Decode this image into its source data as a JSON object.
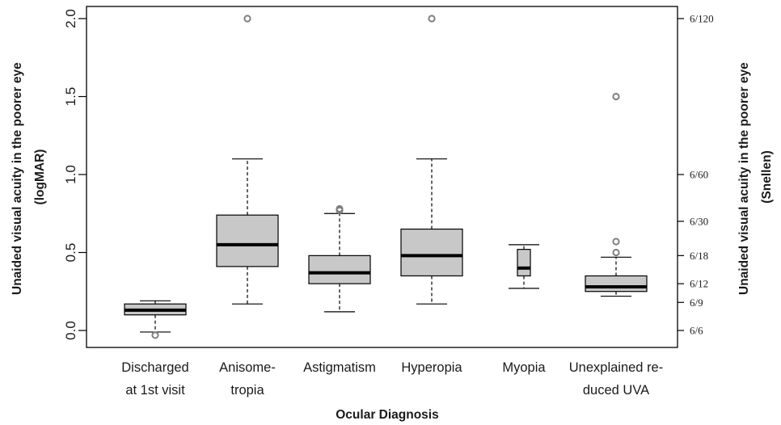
{
  "chart_data": {
    "type": "box",
    "xlabel": "Ocular Diagnosis",
    "ylabel_left": [
      "Unaided visual acuity in the poorer eye",
      "(logMAR)"
    ],
    "ylabel_right": [
      "Unaided visual acuity in the poorer eye",
      "(Snellen)"
    ],
    "ylim": [
      -0.1,
      2.05
    ],
    "left_ticks": [
      {
        "value": 0.0,
        "label": "0.0"
      },
      {
        "value": 0.5,
        "label": "0.5"
      },
      {
        "value": 1.0,
        "label": "1.0"
      },
      {
        "value": 1.5,
        "label": "1.5"
      },
      {
        "value": 2.0,
        "label": "2.0"
      }
    ],
    "right_ticks": [
      {
        "value": 0.0,
        "label": "6/6"
      },
      {
        "value": 0.18,
        "label": "6/9"
      },
      {
        "value": 0.3,
        "label": "6/12"
      },
      {
        "value": 0.48,
        "label": "6/18"
      },
      {
        "value": 0.7,
        "label": "6/30"
      },
      {
        "value": 1.0,
        "label": "6/60"
      },
      {
        "value": 2.0,
        "label": "6/120"
      }
    ],
    "categories": [
      [
        "Discharged",
        "at 1st visit"
      ],
      [
        "Anisome-",
        "tropia"
      ],
      [
        "Astigmatism"
      ],
      [
        "Hyperopia"
      ],
      [
        "Myopia"
      ],
      [
        "Unexplained re-",
        "duced UVA"
      ]
    ],
    "boxes": [
      {
        "whisker_low": -0.01,
        "q1": 0.1,
        "median": 0.13,
        "q3": 0.17,
        "whisker_high": 0.19,
        "outliers": [
          -0.03
        ]
      },
      {
        "whisker_low": 0.17,
        "q1": 0.41,
        "median": 0.55,
        "q3": 0.74,
        "whisker_high": 1.1,
        "outliers": [
          2.0
        ]
      },
      {
        "whisker_low": 0.12,
        "q1": 0.3,
        "median": 0.37,
        "q3": 0.48,
        "whisker_high": 0.75,
        "outliers": [
          0.77,
          0.78
        ]
      },
      {
        "whisker_low": 0.17,
        "q1": 0.35,
        "median": 0.48,
        "q3": 0.65,
        "whisker_high": 1.1,
        "outliers": [
          2.0
        ]
      },
      {
        "whisker_low": 0.27,
        "q1": 0.35,
        "median": 0.4,
        "q3": 0.52,
        "whisker_high": 0.55,
        "outliers": []
      },
      {
        "whisker_low": 0.22,
        "q1": 0.25,
        "median": 0.28,
        "q3": 0.35,
        "whisker_high": 0.47,
        "outliers": [
          0.5,
          0.57,
          1.5
        ]
      }
    ],
    "box_fill": "#c8c8c8",
    "median_color": "#000000",
    "outlier_color": "#808080"
  }
}
